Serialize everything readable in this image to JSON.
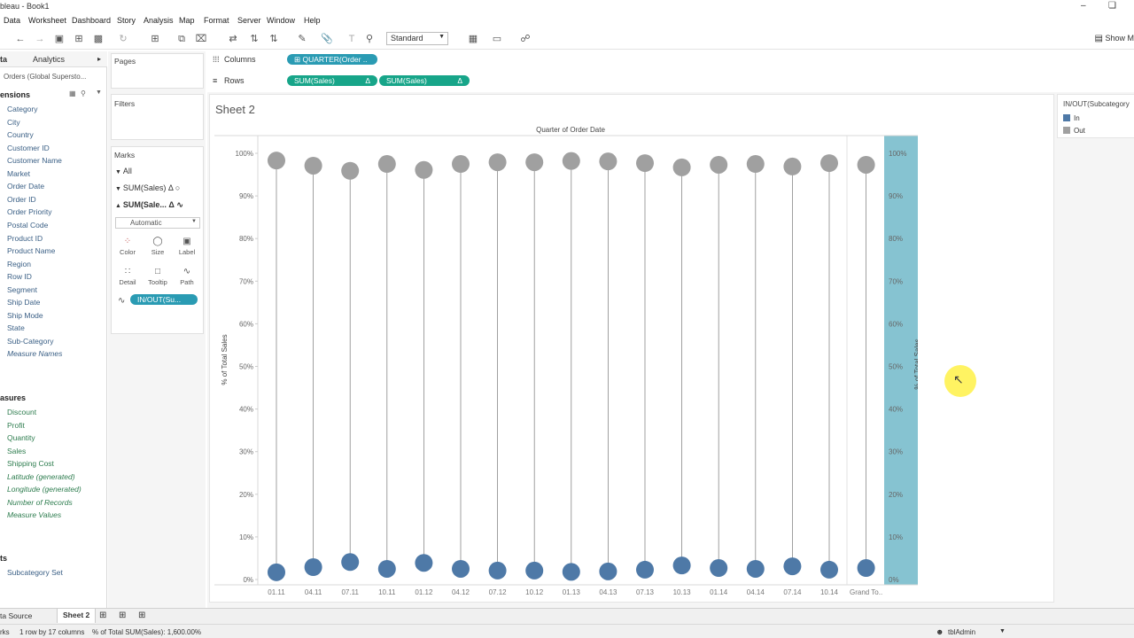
{
  "window": {
    "title": "bleau - Book1"
  },
  "menu": [
    "Data",
    "Worksheet",
    "Dashboard",
    "Story",
    "Analysis",
    "Map",
    "Format",
    "Server",
    "Window",
    "Help"
  ],
  "toolbar": {
    "fit": "Standard",
    "show_me": "Show M"
  },
  "datapane": {
    "tab_data": "ta",
    "tab_analytics": "Analytics",
    "datasource": "Orders (Global Supersto...",
    "dimensions_header": "ensions",
    "dimensions": [
      "Category",
      "City",
      "Country",
      "Customer ID",
      "Customer Name",
      "Market",
      "Order Date",
      "Order ID",
      "Order Priority",
      "Postal Code",
      "Product ID",
      "Product Name",
      "Region",
      "Row ID",
      "Segment",
      "Ship Date",
      "Ship Mode",
      "State",
      "Sub-Category",
      "Measure Names"
    ],
    "measures_header": "asures",
    "measures": [
      "Discount",
      "Profit",
      "Quantity",
      "Sales",
      "Shipping Cost",
      "Latitude (generated)",
      "Longitude (generated)",
      "Number of Records",
      "Measure Values"
    ],
    "sets_header": "ts",
    "sets": [
      "Subcategory Set"
    ]
  },
  "cards": {
    "pages": "Pages",
    "filters": "Filters",
    "marks": "Marks",
    "marks_all": "All",
    "marks_layer1": "SUM(Sales)",
    "marks_layer2": "SUM(Sale...",
    "mark_type": "Automatic",
    "buttons": [
      "Color",
      "Size",
      "Label",
      "Detail",
      "Tooltip",
      "Path"
    ],
    "pill": "IN/OUT(Su..."
  },
  "shelves": {
    "columns_label": "Columns",
    "rows_label": "Rows",
    "columns_pill": "QUARTER(Order ..",
    "rows_pill1": "SUM(Sales)",
    "rows_pill2": "SUM(Sales)"
  },
  "sheet": {
    "title": "Sheet 2"
  },
  "legend": {
    "title": "IN/OUT(Subcategory",
    "items": [
      "In",
      "Out"
    ],
    "colors": [
      "#4e79a7",
      "#a0a0a0"
    ]
  },
  "tabs": {
    "data_source": "ta Source",
    "sheet": "Sheet 2"
  },
  "status": {
    "marks": "rks",
    "rows_cols": "1 row by 17 columns",
    "sum": "% of Total SUM(Sales): 1,600.00%",
    "user": "tblAdmin"
  },
  "chart_data": {
    "type": "scatter",
    "title": "Quarter of Order Date",
    "ylabel": "% of Total Sales",
    "y2label": "% of Total Sales",
    "ylim": [
      0,
      100
    ],
    "yticks": [
      "0%",
      "10%",
      "20%",
      "30%",
      "40%",
      "50%",
      "60%",
      "70%",
      "80%",
      "90%",
      "100%"
    ],
    "categories": [
      "01.11",
      "04.11",
      "07.11",
      "10.11",
      "01.12",
      "04.12",
      "07.12",
      "10.12",
      "01.13",
      "04.13",
      "07.13",
      "10.13",
      "01.14",
      "04.14",
      "07.14",
      "10.14",
      "Grand To.."
    ],
    "series": [
      {
        "name": "In",
        "color": "#4e79a7",
        "values": [
          1.7,
          2.9,
          4.1,
          2.5,
          3.9,
          2.5,
          2.1,
          2.1,
          1.8,
          1.9,
          2.3,
          3.3,
          2.7,
          2.5,
          3.1,
          2.3,
          2.7
        ]
      },
      {
        "name": "Out",
        "color": "#a0a0a0",
        "values": [
          98.3,
          97.1,
          95.9,
          97.5,
          96.1,
          97.5,
          97.9,
          97.9,
          98.2,
          98.1,
          97.7,
          96.7,
          97.3,
          97.5,
          96.9,
          97.7,
          97.3
        ]
      }
    ],
    "highlight_color": "#86c3d1",
    "grid": false
  }
}
